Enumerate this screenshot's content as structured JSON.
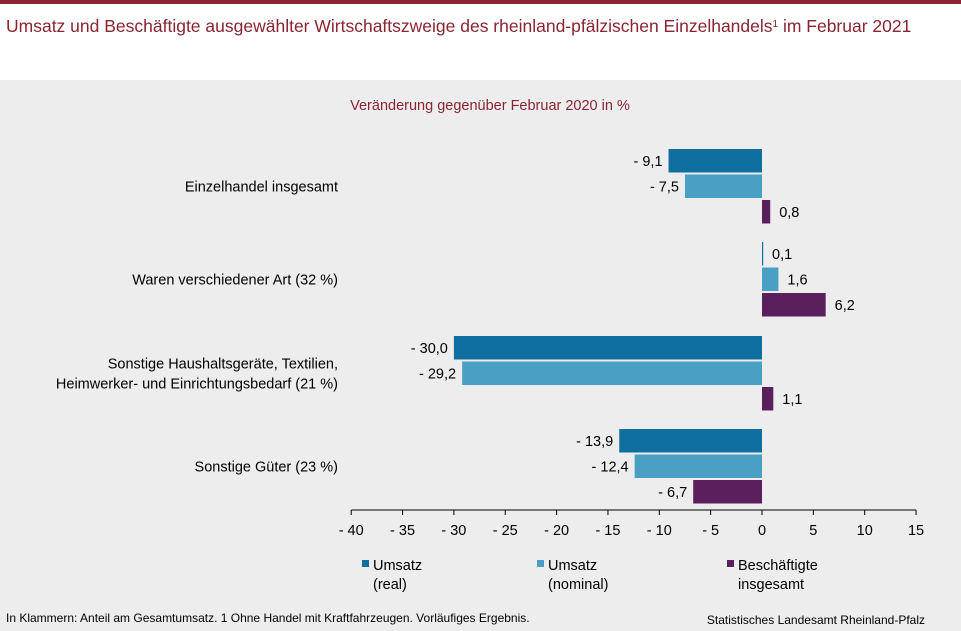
{
  "title_main": "Umsatz und Beschäftigte ausgewählter Wirtschaftszweige des rheinland-pfälzischen Einzelhandels",
  "title_sup": "1",
  "title_tail": " im Februar 2021",
  "footnote": "In Klammern: Anteil am Gesamtumsatz. 1 Ohne Handel mit Kraftfahrzeugen. Vorläufiges Ergebnis.",
  "source": "Statistisches Landesamt Rheinland-Pfalz",
  "colors": {
    "title": "#8a2432",
    "real": "#0f6f9e",
    "nominal": "#4aa0c4",
    "employees": "#5b1f5e",
    "background": "#ededed"
  },
  "chart_data": {
    "type": "bar",
    "orientation": "horizontal",
    "subtitle": "Veränderung gegenüber Februar 2020 in %",
    "categories": [
      [
        "Einzelhandel insgesamt"
      ],
      [
        "Waren verschiedener Art (32 %)"
      ],
      [
        "Sonstige Haushaltsgeräte, Textilien,",
        "Heimwerker- und Einrichtungsbedarf (21 %)"
      ],
      [
        "Sonstige Güter (23 %)"
      ]
    ],
    "series": [
      {
        "name": [
          "Umsatz",
          "(real)"
        ],
        "values": [
          -9.1,
          0.1,
          -30.0,
          -13.9
        ],
        "labels": [
          "- 9,1",
          "0,1",
          "- 30,0",
          "- 13,9"
        ]
      },
      {
        "name": [
          "Umsatz",
          "(nominal)"
        ],
        "values": [
          -7.5,
          1.6,
          -29.2,
          -12.4
        ],
        "labels": [
          "- 7,5",
          "1,6",
          "- 29,2",
          "- 12,4"
        ]
      },
      {
        "name": [
          "Beschäftigte",
          "insgesamt"
        ],
        "values": [
          0.8,
          6.2,
          1.1,
          -6.7
        ],
        "labels": [
          "0,8",
          "6,2",
          "1,1",
          "- 6,7"
        ]
      }
    ],
    "xlim": [
      -40,
      15
    ],
    "ticks": [
      -40,
      -35,
      -30,
      -25,
      -20,
      -15,
      -10,
      -5,
      0,
      5,
      10,
      15
    ],
    "tick_labels": [
      "- 40",
      "- 35",
      "- 30",
      "- 25",
      "- 20",
      "- 15",
      "- 10",
      "- 5",
      "0",
      "5",
      "10",
      "15"
    ],
    "legend_position": "bottom",
    "grid": false
  }
}
